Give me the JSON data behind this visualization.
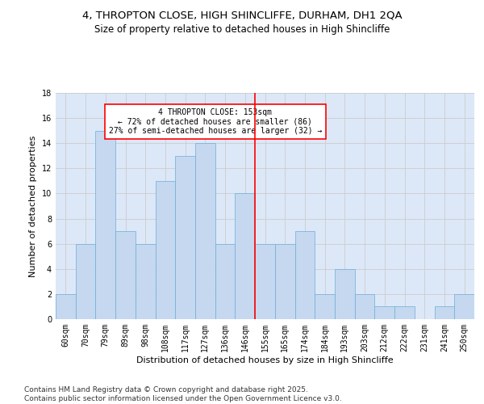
{
  "title_line1": "4, THROPTON CLOSE, HIGH SHINCLIFFE, DURHAM, DH1 2QA",
  "title_line2": "Size of property relative to detached houses in High Shincliffe",
  "xlabel": "Distribution of detached houses by size in High Shincliffe",
  "ylabel": "Number of detached properties",
  "categories": [
    "60sqm",
    "70sqm",
    "79sqm",
    "89sqm",
    "98sqm",
    "108sqm",
    "117sqm",
    "127sqm",
    "136sqm",
    "146sqm",
    "155sqm",
    "165sqm",
    "174sqm",
    "184sqm",
    "193sqm",
    "203sqm",
    "212sqm",
    "222sqm",
    "231sqm",
    "241sqm",
    "250sqm"
  ],
  "values": [
    2,
    6,
    15,
    7,
    6,
    11,
    13,
    14,
    6,
    10,
    6,
    6,
    7,
    2,
    4,
    2,
    1,
    1,
    0,
    1,
    2
  ],
  "bar_color": "#c5d8f0",
  "bar_edge_color": "#6baed6",
  "vline_x": 10.0,
  "vline_color": "red",
  "annotation_text": "4 THROPTON CLOSE: 153sqm\n← 72% of detached houses are smaller (86)\n27% of semi-detached houses are larger (32) →",
  "annotation_box_color": "red",
  "ylim": [
    0,
    18
  ],
  "yticks": [
    0,
    2,
    4,
    6,
    8,
    10,
    12,
    14,
    16,
    18
  ],
  "grid_color": "#cccccc",
  "bg_color": "#dce8f8",
  "footer": "Contains HM Land Registry data © Crown copyright and database right 2025.\nContains public sector information licensed under the Open Government Licence v3.0.",
  "title_fontsize": 9.5,
  "subtitle_fontsize": 8.5,
  "xlabel_fontsize": 8,
  "ylabel_fontsize": 8,
  "tick_fontsize": 7,
  "footer_fontsize": 6.5
}
